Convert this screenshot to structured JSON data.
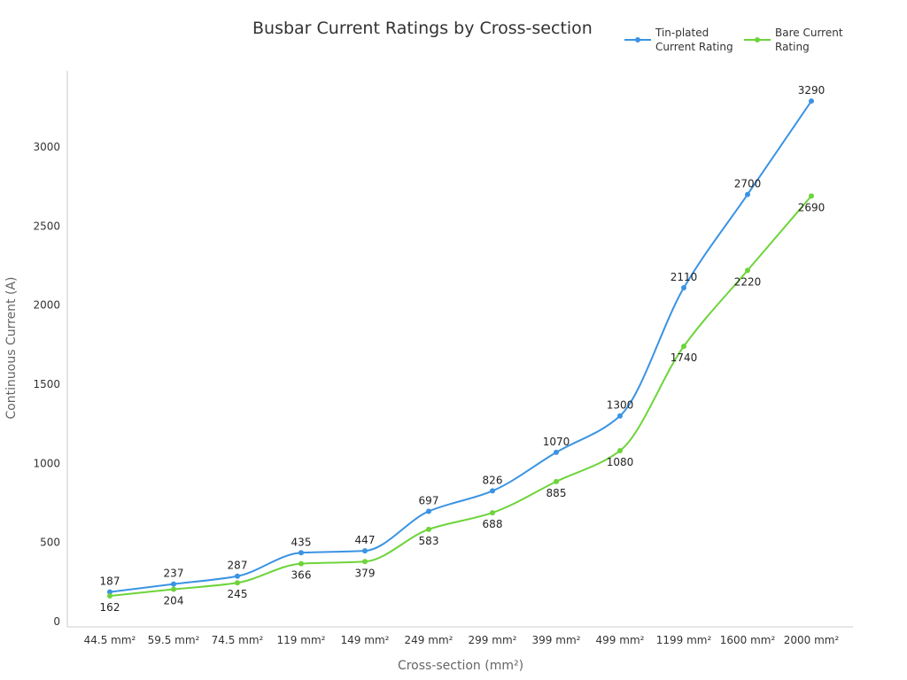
{
  "chart_data": {
    "type": "line",
    "title": "Busbar Current Ratings by Cross-section",
    "xlabel": "Cross-section (mm²)",
    "ylabel": "Continuous Current (A)",
    "categories": [
      "44.5 mm²",
      "59.5 mm²",
      "74.5 mm²",
      "119 mm²",
      "149 mm²",
      "249 mm²",
      "299 mm²",
      "399 mm²",
      "499 mm²",
      "1199 mm²",
      "1600 mm²",
      "2000 mm²"
    ],
    "ylim": [
      0,
      3500
    ],
    "yticks": [
      0,
      500,
      1000,
      1500,
      2000,
      2500,
      3000
    ],
    "grid": false,
    "legend_position": "top-right",
    "smooth": true,
    "data_labels": true,
    "series": [
      {
        "name": "Tin-plated Current Rating",
        "color": "#3a93e3",
        "values": [
          187,
          237,
          287,
          435,
          447,
          697,
          826,
          1070,
          1300,
          2110,
          2700,
          3290
        ]
      },
      {
        "name": "Bare Current Rating",
        "color": "#6dd43a",
        "values": [
          162,
          204,
          245,
          366,
          379,
          583,
          688,
          885,
          1080,
          1740,
          2220,
          2690
        ]
      }
    ]
  }
}
